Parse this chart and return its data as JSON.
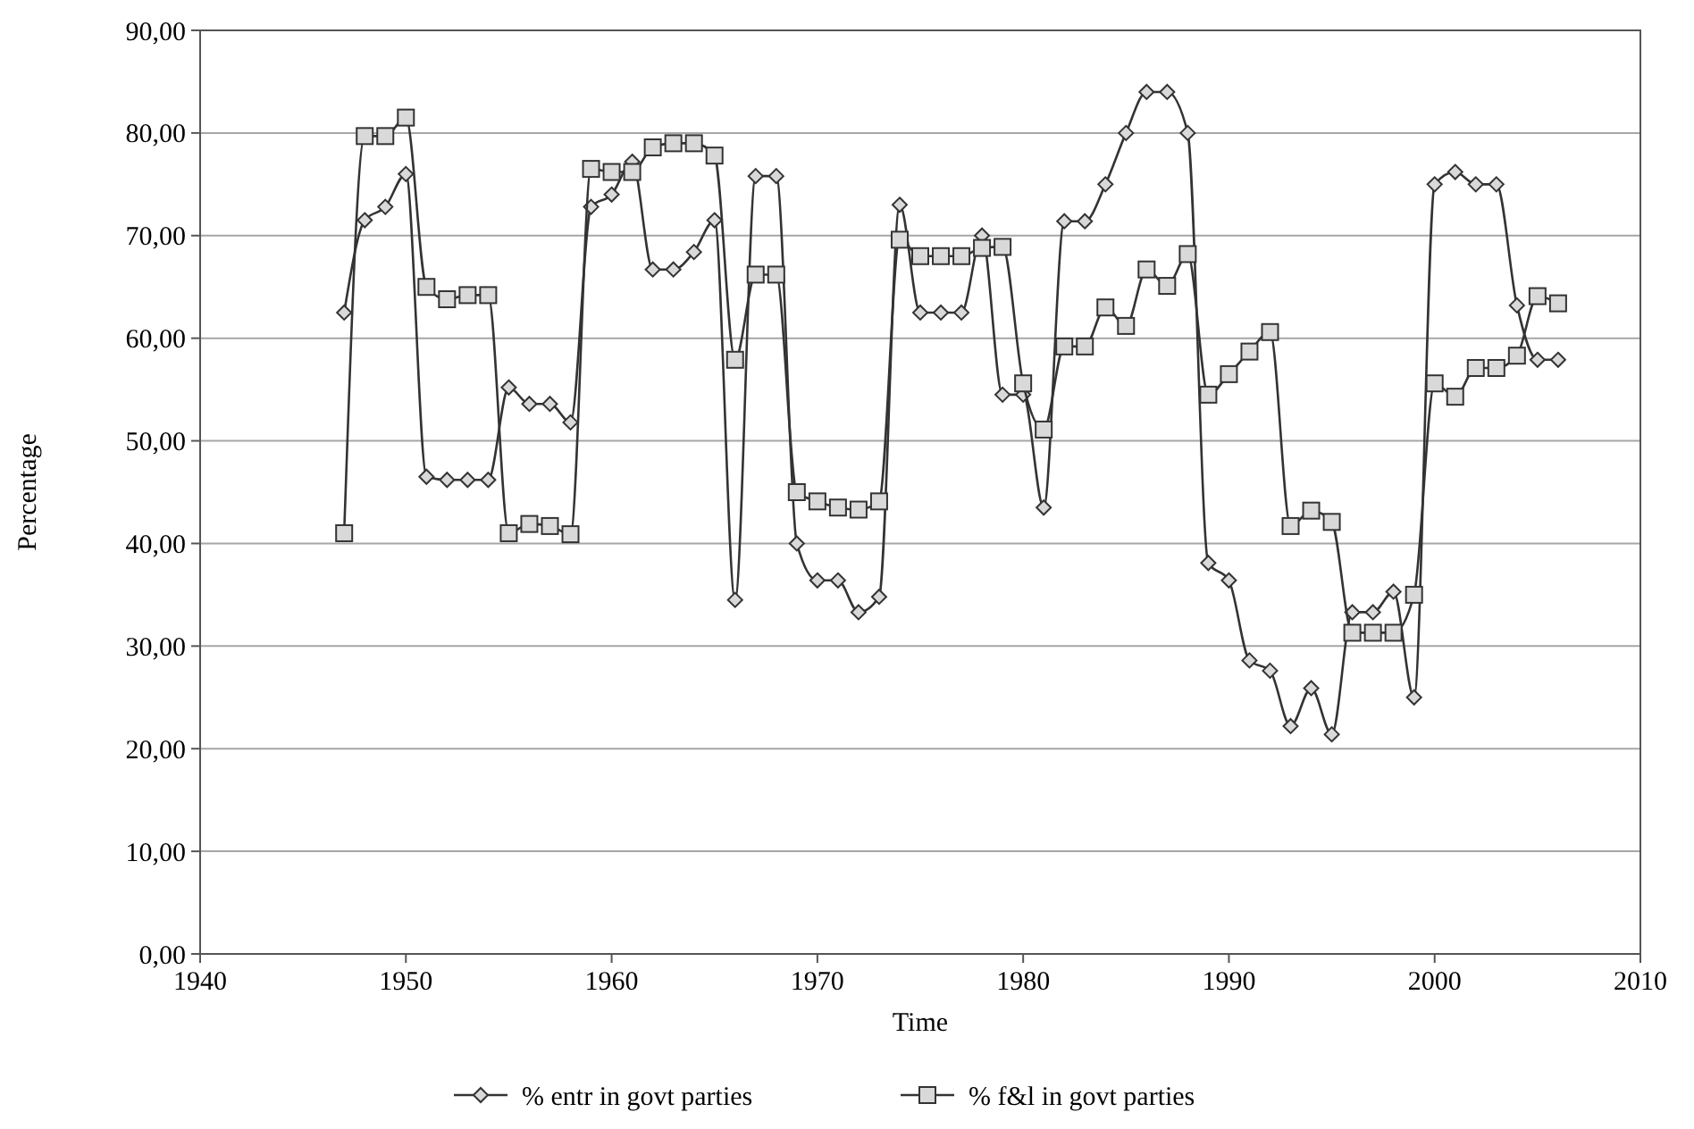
{
  "chart_data": {
    "type": "line",
    "xlabel": "Time",
    "ylabel": "Percentage",
    "x": [
      1947,
      1948,
      1949,
      1950,
      1951,
      1952,
      1953,
      1954,
      1955,
      1956,
      1957,
      1958,
      1959,
      1960,
      1961,
      1962,
      1963,
      1964,
      1965,
      1966,
      1967,
      1968,
      1969,
      1970,
      1971,
      1972,
      1973,
      1974,
      1975,
      1976,
      1977,
      1978,
      1979,
      1980,
      1981,
      1982,
      1983,
      1984,
      1985,
      1986,
      1987,
      1988,
      1989,
      1990,
      1991,
      1992,
      1993,
      1994,
      1995,
      1996,
      1997,
      1998,
      1999,
      2000,
      2001,
      2002,
      2003,
      2004,
      2005,
      2006
    ],
    "series": [
      {
        "name": "% entr in govt parties",
        "color": "#333333",
        "marker": "diamond",
        "values": [
          62.5,
          71.5,
          72.8,
          76,
          46.5,
          46.2,
          46.2,
          46.2,
          55.2,
          53.6,
          53.6,
          51.8,
          72.8,
          74,
          77.2,
          66.7,
          66.7,
          68.4,
          71.5,
          34.5,
          75.8,
          75.8,
          40,
          36.4,
          36.4,
          33.3,
          34.8,
          73,
          62.5,
          62.5,
          62.5,
          70,
          54.5,
          54.5,
          43.5,
          71.4,
          71.4,
          75,
          80,
          84,
          84,
          80,
          38.1,
          36.4,
          28.6,
          27.6,
          22.2,
          25.9,
          21.4,
          33.3,
          33.3,
          35.3,
          25,
          75,
          76.2,
          75,
          75,
          63.2,
          57.9,
          57.9
        ]
      },
      {
        "name": "% f&l in govt parties",
        "color": "#333333",
        "marker": "square",
        "values": [
          41,
          79.7,
          79.7,
          81.5,
          65,
          63.8,
          64.2,
          64.2,
          41,
          41.9,
          41.7,
          40.9,
          76.5,
          76.2,
          76.2,
          78.6,
          79,
          79,
          77.8,
          57.9,
          66.2,
          66.2,
          45,
          44.1,
          43.5,
          43.3,
          44.1,
          69.6,
          68,
          68,
          68,
          68.8,
          68.9,
          55.6,
          51.1,
          59.2,
          59.2,
          63,
          61.2,
          66.7,
          65.1,
          68.2,
          54.5,
          56.5,
          58.7,
          60.6,
          41.7,
          43.2,
          42.1,
          31.3,
          31.3,
          31.3,
          35,
          55.6,
          54.3,
          57.1,
          57.1,
          58.3,
          64.1,
          63.4
        ]
      }
    ],
    "xlim": [
      1940,
      2010
    ],
    "xticks": [
      1940,
      1950,
      1960,
      1970,
      1980,
      1990,
      2000,
      2010
    ],
    "ylim": [
      0,
      90
    ],
    "yticks": [
      {
        "value": 0,
        "label": "0,00"
      },
      {
        "value": 10,
        "label": "10,00"
      },
      {
        "value": 20,
        "label": "20,00"
      },
      {
        "value": 30,
        "label": "30,00"
      },
      {
        "value": 40,
        "label": "40,00"
      },
      {
        "value": 50,
        "label": "50,00"
      },
      {
        "value": 60,
        "label": "60,00"
      },
      {
        "value": 70,
        "label": "70,00"
      },
      {
        "value": 80,
        "label": "80,00"
      },
      {
        "value": 90,
        "label": "90,00"
      }
    ],
    "grid": "y",
    "legend": "bottom"
  }
}
